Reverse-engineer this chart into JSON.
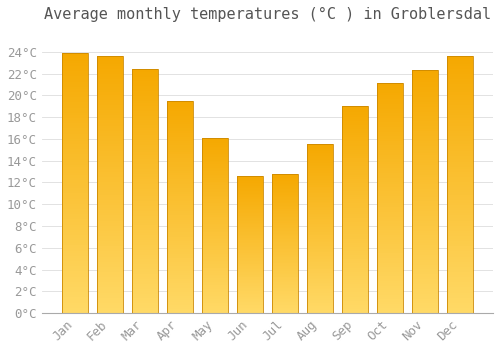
{
  "title": "Average monthly temperatures (°C ) in Groblersdal",
  "months": [
    "Jan",
    "Feb",
    "Mar",
    "Apr",
    "May",
    "Jun",
    "Jul",
    "Aug",
    "Sep",
    "Oct",
    "Nov",
    "Dec"
  ],
  "values": [
    23.9,
    23.6,
    22.4,
    19.5,
    16.1,
    12.6,
    12.8,
    15.5,
    19.0,
    21.1,
    22.3,
    23.6
  ],
  "bar_color_top": "#F5A800",
  "bar_color_bottom": "#FFD966",
  "bar_edge_color": "#CC8800",
  "background_color": "#FFFFFF",
  "grid_color": "#DDDDDD",
  "text_color": "#999999",
  "title_color": "#555555",
  "ylim": [
    0,
    26
  ],
  "yticks": [
    0,
    2,
    4,
    6,
    8,
    10,
    12,
    14,
    16,
    18,
    20,
    22,
    24
  ],
  "title_fontsize": 11,
  "tick_fontsize": 9,
  "figsize": [
    5.0,
    3.5
  ],
  "dpi": 100
}
